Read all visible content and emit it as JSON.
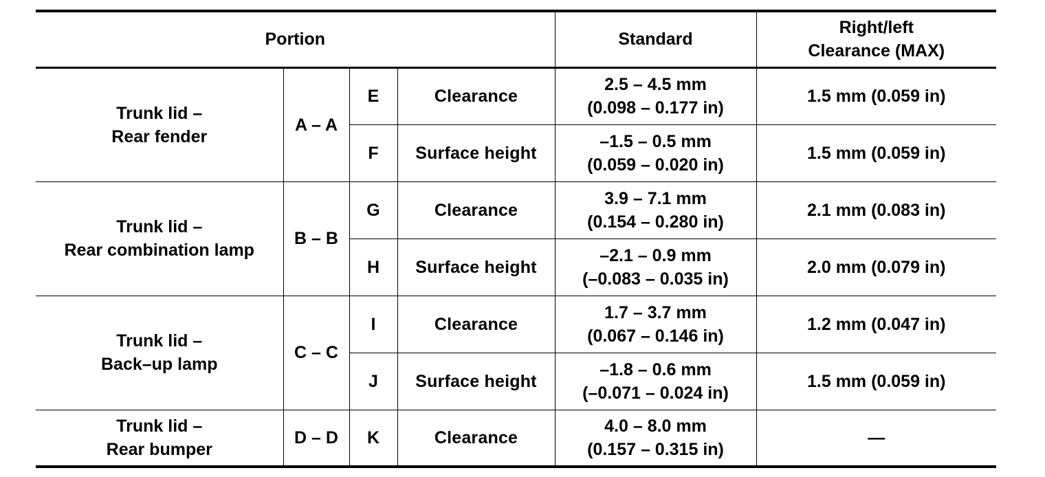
{
  "header": {
    "portion": "Portion",
    "standard": "Standard",
    "max_line1": "Right/left",
    "max_line2": "Clearance (MAX)"
  },
  "groups": [
    {
      "portion_line1": "Trunk lid –",
      "portion_line2": "Rear fender",
      "section": "A – A",
      "rows": [
        {
          "letter": "E",
          "item": "Clearance",
          "std_mm": "2.5 – 4.5 mm",
          "std_in": "(0.098 – 0.177 in)",
          "max": "1.5 mm (0.059 in)"
        },
        {
          "letter": "F",
          "item": "Surface height",
          "std_mm": "–1.5 – 0.5 mm",
          "std_in": "(0.059 – 0.020 in)",
          "max": "1.5 mm (0.059 in)"
        }
      ]
    },
    {
      "portion_line1": "Trunk lid –",
      "portion_line2": "Rear combination lamp",
      "section": "B – B",
      "rows": [
        {
          "letter": "G",
          "item": "Clearance",
          "std_mm": "3.9 – 7.1 mm",
          "std_in": "(0.154 – 0.280 in)",
          "max": "2.1 mm (0.083 in)"
        },
        {
          "letter": "H",
          "item": "Surface height",
          "std_mm": "–2.1 – 0.9 mm",
          "std_in": "(–0.083 – 0.035 in)",
          "max": "2.0 mm (0.079 in)"
        }
      ]
    },
    {
      "portion_line1": "Trunk lid –",
      "portion_line2": "Back–up lamp",
      "section": "C – C",
      "rows": [
        {
          "letter": "I",
          "item": "Clearance",
          "std_mm": "1.7 – 3.7 mm",
          "std_in": "(0.067 – 0.146 in)",
          "max": "1.2 mm (0.047 in)"
        },
        {
          "letter": "J",
          "item": "Surface height",
          "std_mm": "–1.8 – 0.6 mm",
          "std_in": "(–0.071 – 0.024 in)",
          "max": "1.5 mm (0.059 in)"
        }
      ]
    },
    {
      "portion_line1": "Trunk lid –",
      "portion_line2": "Rear bumper",
      "section": "D – D",
      "rows": [
        {
          "letter": "K",
          "item": "Clearance",
          "std_mm": "4.0 – 8.0 mm",
          "std_in": "(0.157 – 0.315 in)",
          "max": "—"
        }
      ]
    }
  ]
}
